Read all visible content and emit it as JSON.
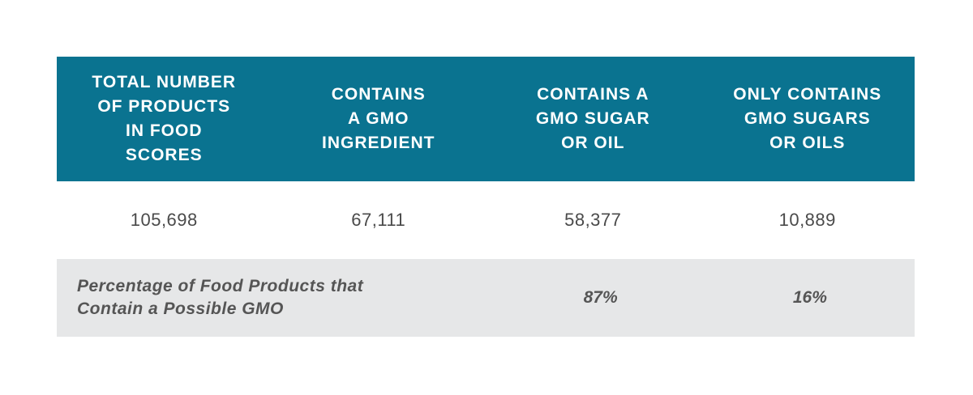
{
  "colors": {
    "header_bg": "#0a7390",
    "header_text": "#ffffff",
    "value_text": "#4a4a4a",
    "footer_bg": "#e6e7e8",
    "footer_text": "#555555"
  },
  "chart_data": {
    "type": "table",
    "columns": [
      "TOTAL NUMBER\nOF PRODUCTS\nIN FOOD\nSCORES",
      "CONTAINS\nA GMO\nINGREDIENT",
      "CONTAINS A\nGMO SUGAR\nOR OIL",
      "ONLY CONTAINS\nGMO SUGARS\nOR OILS"
    ],
    "rows": [
      [
        "105,698",
        "67,111",
        "58,377",
        "10,889"
      ]
    ],
    "footer": {
      "label": "Percentage of Food Products that\nContain a Possible GMO",
      "values": [
        "87%",
        "16%"
      ]
    }
  }
}
